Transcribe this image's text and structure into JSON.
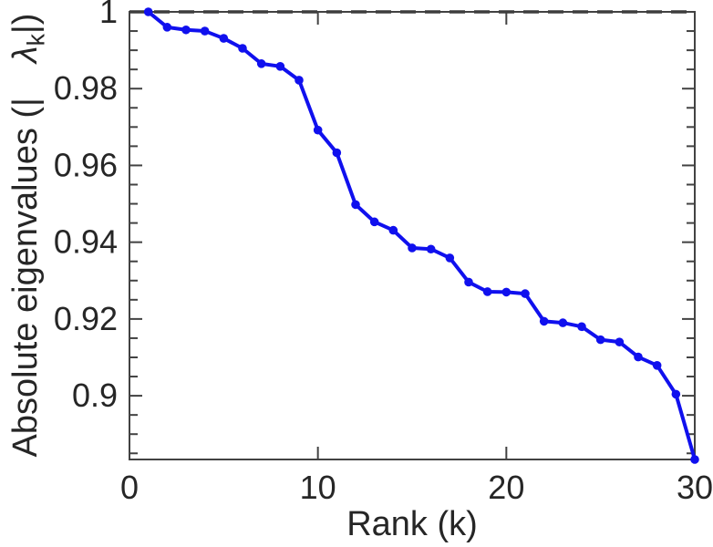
{
  "chart_data": {
    "type": "line",
    "title": "",
    "xlabel": "Rank (k)",
    "ylabel": "Absolute eigenvalues (| λ_k|)",
    "ylabel_parts": {
      "prefix": "Absolute eigenvalues (|",
      "symbol": "λ",
      "subscript": "k",
      "suffix": "|)"
    },
    "x": [
      1,
      2,
      3,
      4,
      5,
      6,
      7,
      8,
      9,
      10,
      11,
      12,
      13,
      14,
      15,
      16,
      17,
      18,
      19,
      20,
      21,
      22,
      23,
      24,
      25,
      26,
      27,
      28,
      29,
      30
    ],
    "y": [
      1.0,
      0.996,
      0.9953,
      0.995,
      0.9931,
      0.9905,
      0.9865,
      0.9858,
      0.9822,
      0.9692,
      0.9633,
      0.9498,
      0.9453,
      0.9431,
      0.9385,
      0.9382,
      0.9359,
      0.9296,
      0.9271,
      0.927,
      0.9266,
      0.9194,
      0.919,
      0.918,
      0.9146,
      0.914,
      0.9101,
      0.9079,
      0.9004,
      0.8834
    ],
    "xlim": [
      0,
      30
    ],
    "ylim": [
      0.8834,
      1.0
    ],
    "x_ticks": [
      0,
      10,
      20,
      30
    ],
    "x_tick_labels": [
      "0",
      "10",
      "20",
      "30"
    ],
    "y_ticks": [
      1,
      0.98,
      0.96,
      0.94,
      0.92,
      0.9
    ],
    "y_tick_labels": [
      "1",
      "0.98",
      "0.96",
      "0.94",
      "0.92",
      "0.9"
    ],
    "y_minor_tick_step": 0.005,
    "grid": false,
    "legend": null,
    "reference_line": {
      "y": 1.0,
      "style": "dashed"
    }
  },
  "style": {
    "line_color": "#1010ee",
    "marker_color": "#1010ee",
    "reference_line_color": "#3d3d3d",
    "axis_color": "#424242",
    "text_color": "#262626",
    "background": "#ffffff"
  }
}
